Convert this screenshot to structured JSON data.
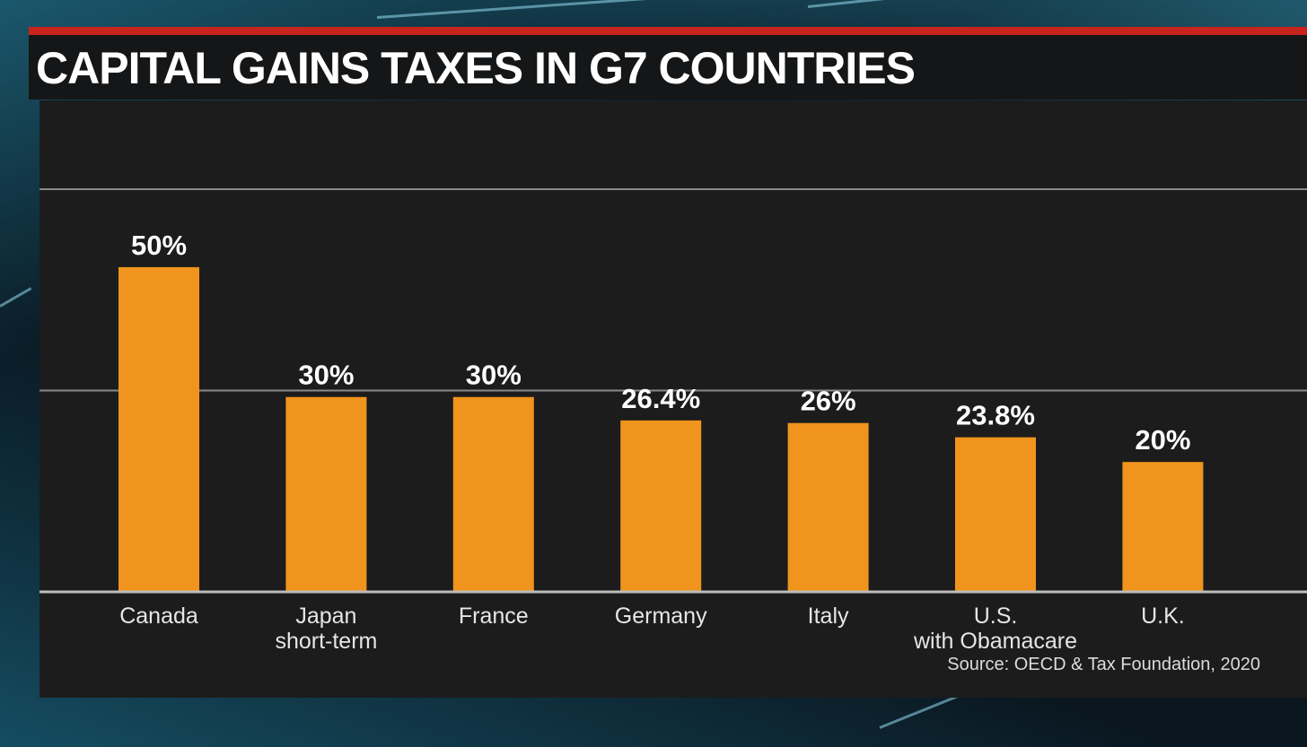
{
  "title": "CAPITAL GAINS TAXES IN G7 COUNTRIES",
  "source": "Source: OECD & Tax Foundation, 2020",
  "colors": {
    "bar": "#f0941d",
    "accent_red": "#c8241d",
    "panel": "#1c1c1c",
    "gridline": "#8a8a8a"
  },
  "chart_data": {
    "type": "bar",
    "title": "CAPITAL GAINS TAXES IN G7 COUNTRIES",
    "categories": [
      "Canada",
      "Japan\nshort-term",
      "France",
      "Germany",
      "Italy",
      "U.S.\nwith Obamacare",
      "U.K."
    ],
    "values": [
      50,
      30,
      30,
      26.4,
      26,
      23.8,
      20
    ],
    "value_labels": [
      "50%",
      "30%",
      "30%",
      "26.4%",
      "26%",
      "23.8%",
      "20%"
    ],
    "xlabel": "",
    "ylabel": "",
    "ylim": [
      0,
      62
    ],
    "gridlines": [
      31,
      62
    ],
    "grid": true,
    "legend": "none"
  }
}
